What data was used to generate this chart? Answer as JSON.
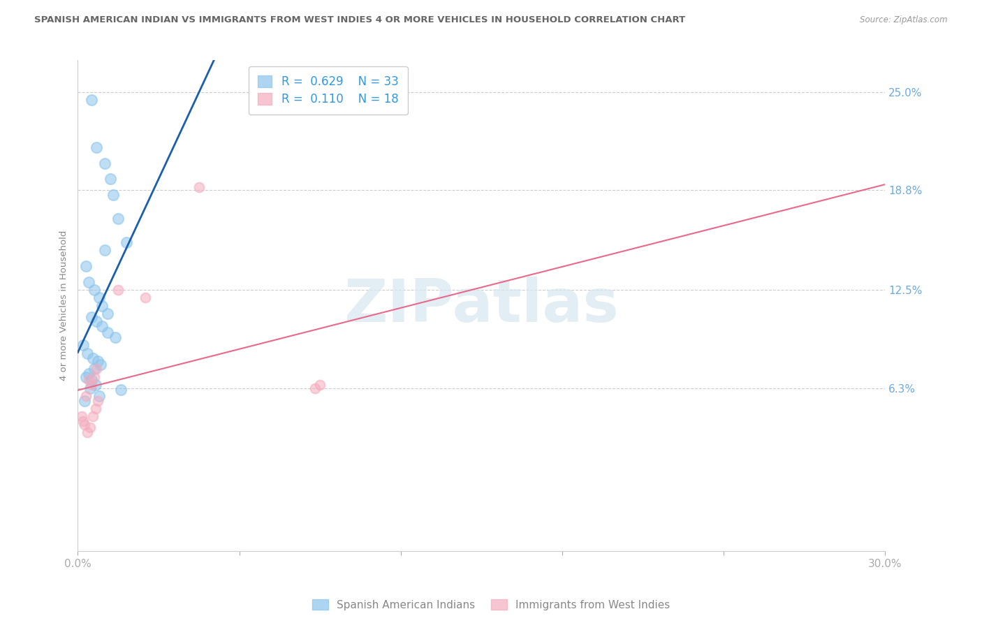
{
  "title": "SPANISH AMERICAN INDIAN VS IMMIGRANTS FROM WEST INDIES 4 OR MORE VEHICLES IN HOUSEHOLD CORRELATION CHART",
  "source": "Source: ZipAtlas.com",
  "ylabel": "4 or more Vehicles in Household",
  "xlim": [
    0.0,
    30.0
  ],
  "ylim_bottom": -4.0,
  "ylim_top": 27.0,
  "ytick_labels": [
    "6.3%",
    "12.5%",
    "18.8%",
    "25.0%"
  ],
  "ytick_values": [
    6.3,
    12.5,
    18.8,
    25.0
  ],
  "legend1_R": "0.629",
  "legend1_N": "33",
  "legend2_R": "0.110",
  "legend2_N": "18",
  "color_blue": "#8BC4EC",
  "color_pink": "#F4ACBE",
  "trendline_blue": "#1A5FAB",
  "trendline_pink": "#E8698A",
  "watermark_text": "ZIPatlas",
  "blue_x": [
    0.5,
    0.7,
    1.0,
    1.2,
    1.5,
    1.8,
    1.0,
    1.3,
    0.3,
    0.4,
    0.6,
    0.8,
    0.9,
    1.1,
    0.5,
    0.7,
    0.9,
    1.1,
    1.4,
    0.2,
    0.35,
    0.55,
    0.75,
    0.85,
    0.6,
    0.4,
    0.3,
    0.5,
    0.65,
    0.45,
    0.8,
    1.6,
    0.25
  ],
  "blue_y": [
    24.5,
    21.5,
    20.5,
    19.5,
    17.0,
    15.5,
    15.0,
    18.5,
    14.0,
    13.0,
    12.5,
    12.0,
    11.5,
    11.0,
    10.8,
    10.5,
    10.2,
    9.8,
    9.5,
    9.0,
    8.5,
    8.2,
    8.0,
    7.8,
    7.5,
    7.2,
    7.0,
    6.8,
    6.5,
    6.3,
    5.8,
    6.2,
    5.5
  ],
  "pink_x": [
    0.15,
    0.25,
    0.35,
    0.45,
    0.55,
    0.65,
    0.75,
    0.5,
    0.6,
    0.7,
    1.5,
    2.5,
    8.8,
    9.0,
    4.5,
    0.3,
    0.4,
    0.2
  ],
  "pink_y": [
    4.5,
    4.0,
    3.5,
    3.8,
    4.5,
    5.0,
    5.5,
    6.5,
    7.0,
    7.5,
    12.5,
    12.0,
    6.3,
    6.5,
    19.0,
    5.8,
    6.8,
    4.2
  ],
  "blue_marker_size": 120,
  "pink_marker_size": 100,
  "background_color": "#FFFFFF",
  "plot_background": "#FFFFFF",
  "grid_color": "#CCCCCC",
  "title_color": "#666666",
  "axis_label_color": "#888888",
  "tick_color": "#AAAAAA",
  "right_tick_color": "#6EAADD",
  "legend_edge_color": "#CCCCCC",
  "legend_text_color": "#3399DD",
  "bottom_legend_text_color": "#888888"
}
